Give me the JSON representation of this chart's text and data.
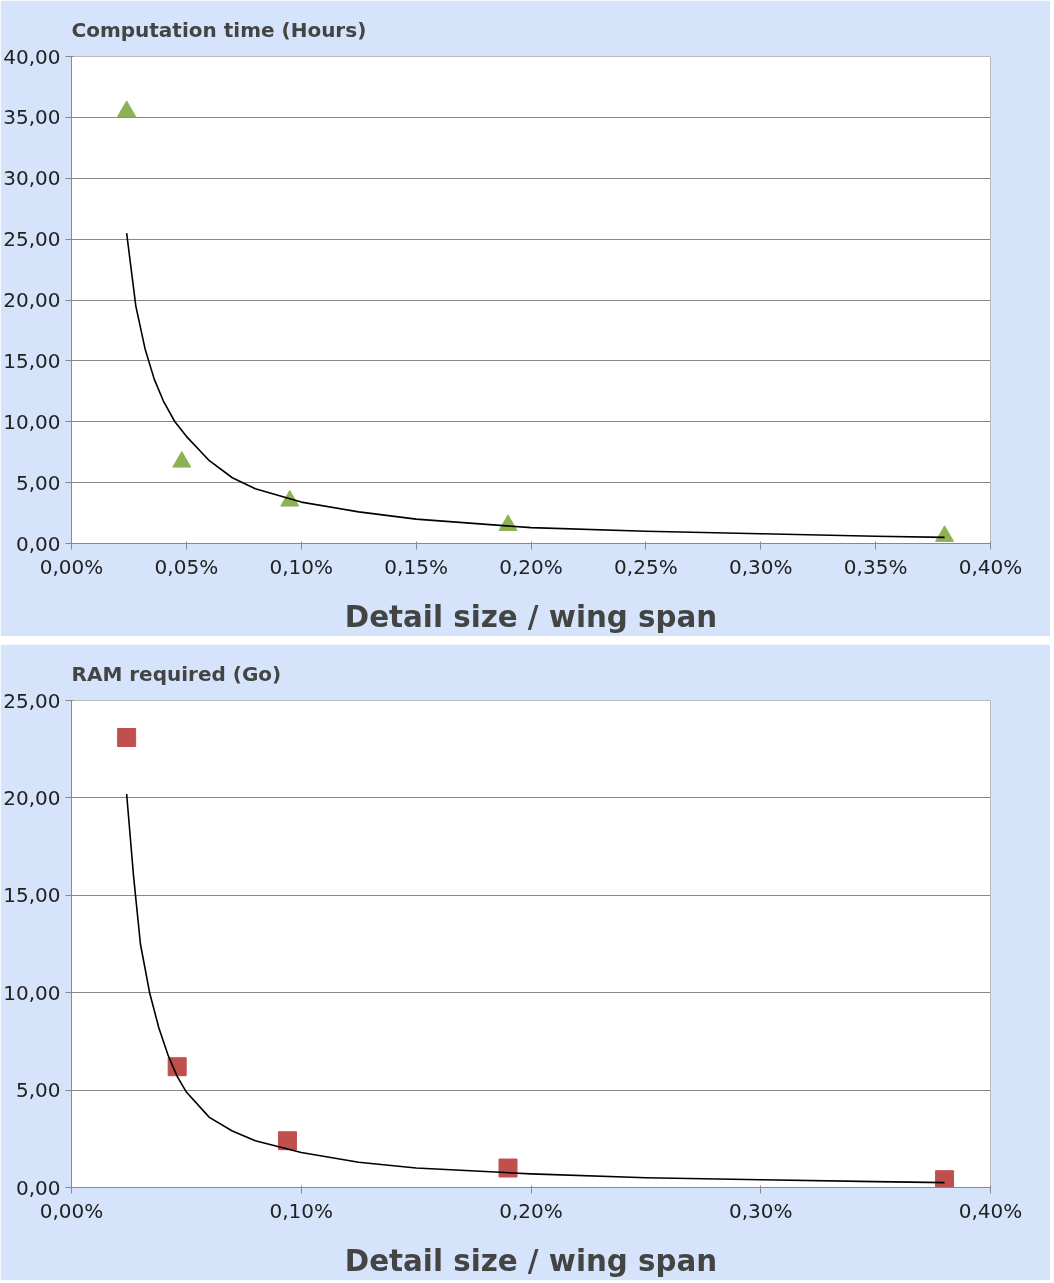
{
  "chart_data": [
    {
      "type": "scatter",
      "title": "Computation time (Hours)",
      "xlabel": "Detail size / wing span",
      "grid": "y",
      "xlim": [
        0,
        0.4
      ],
      "xticks": [
        {
          "value": 0,
          "label": "0,00%"
        },
        {
          "value": 0.05,
          "label": "0,05%"
        },
        {
          "value": 0.1,
          "label": "0,10%"
        },
        {
          "value": 0.15,
          "label": "0,15%"
        },
        {
          "value": 0.2,
          "label": "0,20%"
        },
        {
          "value": 0.25,
          "label": "0,25%"
        },
        {
          "value": 0.3,
          "label": "0,30%"
        },
        {
          "value": 0.35,
          "label": "0,35%"
        },
        {
          "value": 0.4,
          "label": "0,40%"
        }
      ],
      "ylim": [
        0,
        40
      ],
      "yticks": [
        {
          "value": 0,
          "label": "0,00"
        },
        {
          "value": 5,
          "label": "5,00"
        },
        {
          "value": 10,
          "label": "10,00"
        },
        {
          "value": 15,
          "label": "15,00"
        },
        {
          "value": 20,
          "label": "20,00"
        },
        {
          "value": 25,
          "label": "25,00"
        },
        {
          "value": 30,
          "label": "30,00"
        },
        {
          "value": 35,
          "label": "35,00"
        },
        {
          "value": 40,
          "label": "40,00"
        }
      ],
      "series": [
        {
          "marker": "triangle",
          "color": "#8db255",
          "x": [
            0.024,
            0.048,
            0.095,
            0.19,
            0.38
          ],
          "values": [
            35.5,
            6.7,
            3.5,
            1.5,
            0.6
          ]
        },
        {
          "type": "line",
          "color": "#000000",
          "x": [
            0.024,
            0.028,
            0.032,
            0.036,
            0.04,
            0.045,
            0.05,
            0.06,
            0.07,
            0.08,
            0.1,
            0.125,
            0.15,
            0.2,
            0.25,
            0.3,
            0.35,
            0.38
          ],
          "values": [
            25.5,
            19.5,
            16.0,
            13.5,
            11.7,
            10.0,
            8.8,
            6.8,
            5.4,
            4.5,
            3.4,
            2.6,
            2.0,
            1.3,
            1.0,
            0.8,
            0.6,
            0.5
          ]
        }
      ]
    },
    {
      "type": "scatter",
      "title": "RAM required (Go)",
      "xlabel": "Detail size / wing span",
      "grid": "y",
      "xlim": [
        0,
        0.4
      ],
      "xticks": [
        {
          "value": 0,
          "label": "0,00%"
        },
        {
          "value": 0.1,
          "label": "0,10%"
        },
        {
          "value": 0.2,
          "label": "0,20%"
        },
        {
          "value": 0.3,
          "label": "0,30%"
        },
        {
          "value": 0.4,
          "label": "0,40%"
        }
      ],
      "ylim": [
        0,
        25
      ],
      "yticks": [
        {
          "value": 0,
          "label": "0,00"
        },
        {
          "value": 5,
          "label": "5,00"
        },
        {
          "value": 10,
          "label": "10,00"
        },
        {
          "value": 15,
          "label": "15,00"
        },
        {
          "value": 20,
          "label": "20,00"
        },
        {
          "value": 25,
          "label": "25,00"
        }
      ],
      "series": [
        {
          "marker": "square",
          "color": "#c0504d",
          "x": [
            0.024,
            0.046,
            0.094,
            0.19,
            0.38
          ],
          "values": [
            23.1,
            6.2,
            2.4,
            1.0,
            0.4
          ]
        },
        {
          "type": "line",
          "color": "#000000",
          "x": [
            0.024,
            0.027,
            0.03,
            0.034,
            0.038,
            0.042,
            0.046,
            0.05,
            0.06,
            0.07,
            0.08,
            0.1,
            0.125,
            0.15,
            0.2,
            0.25,
            0.3,
            0.35,
            0.38
          ],
          "values": [
            20.2,
            16.0,
            12.5,
            10.0,
            8.2,
            6.8,
            5.7,
            4.9,
            3.6,
            2.9,
            2.4,
            1.8,
            1.3,
            1.0,
            0.7,
            0.5,
            0.4,
            0.3,
            0.25
          ]
        }
      ]
    }
  ]
}
